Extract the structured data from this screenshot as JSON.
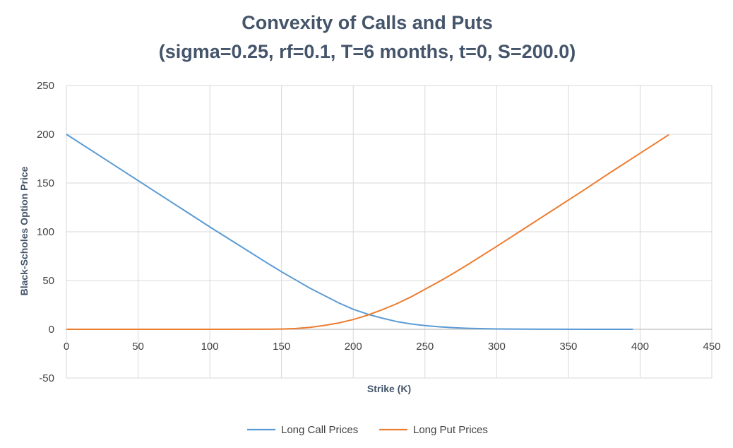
{
  "chart_data": {
    "type": "line",
    "title": "Convexity of Calls and Puts",
    "subtitle": "(sigma=0.25, rf=0.1, T=6 months, t=0, S=200.0)",
    "xlabel": "Strike (K)",
    "ylabel": "Black-Scholes Option Price",
    "xlim": [
      0,
      450
    ],
    "ylim": [
      -50,
      250
    ],
    "x_ticks": [
      0,
      50,
      100,
      150,
      200,
      250,
      300,
      350,
      400,
      450
    ],
    "y_ticks": [
      -50,
      0,
      50,
      100,
      150,
      200,
      250
    ],
    "grid": true,
    "legend_position": "bottom",
    "series": [
      {
        "name": "Long Call Prices",
        "color": "#5b9bd5",
        "x": [
          0,
          20,
          40,
          60,
          80,
          100,
          120,
          140,
          150,
          160,
          170,
          180,
          190,
          200,
          210,
          220,
          230,
          240,
          250,
          260,
          270,
          280,
          300,
          320,
          340,
          360,
          380,
          395
        ],
        "values": [
          200,
          181,
          162,
          143,
          124,
          105,
          86.5,
          68,
          59,
          50.5,
          42,
          34.5,
          27,
          20.5,
          15.5,
          11.5,
          8,
          5.5,
          3.8,
          2.5,
          1.6,
          1,
          0.4,
          0.15,
          0.05,
          0.02,
          0.01,
          0
        ]
      },
      {
        "name": "Long Put Prices",
        "color": "#ed7d31",
        "x": [
          0,
          50,
          100,
          140,
          150,
          160,
          170,
          180,
          190,
          200,
          210,
          220,
          230,
          240,
          250,
          260,
          270,
          280,
          300,
          320,
          340,
          360,
          380,
          400,
          420
        ],
        "values": [
          0,
          0,
          0,
          0.1,
          0.3,
          0.8,
          2,
          4,
          6.5,
          10,
          14.5,
          20,
          26,
          33,
          41,
          49,
          57.5,
          66.5,
          85,
          104,
          123,
          142,
          161.5,
          180.5,
          199.5
        ]
      }
    ]
  }
}
